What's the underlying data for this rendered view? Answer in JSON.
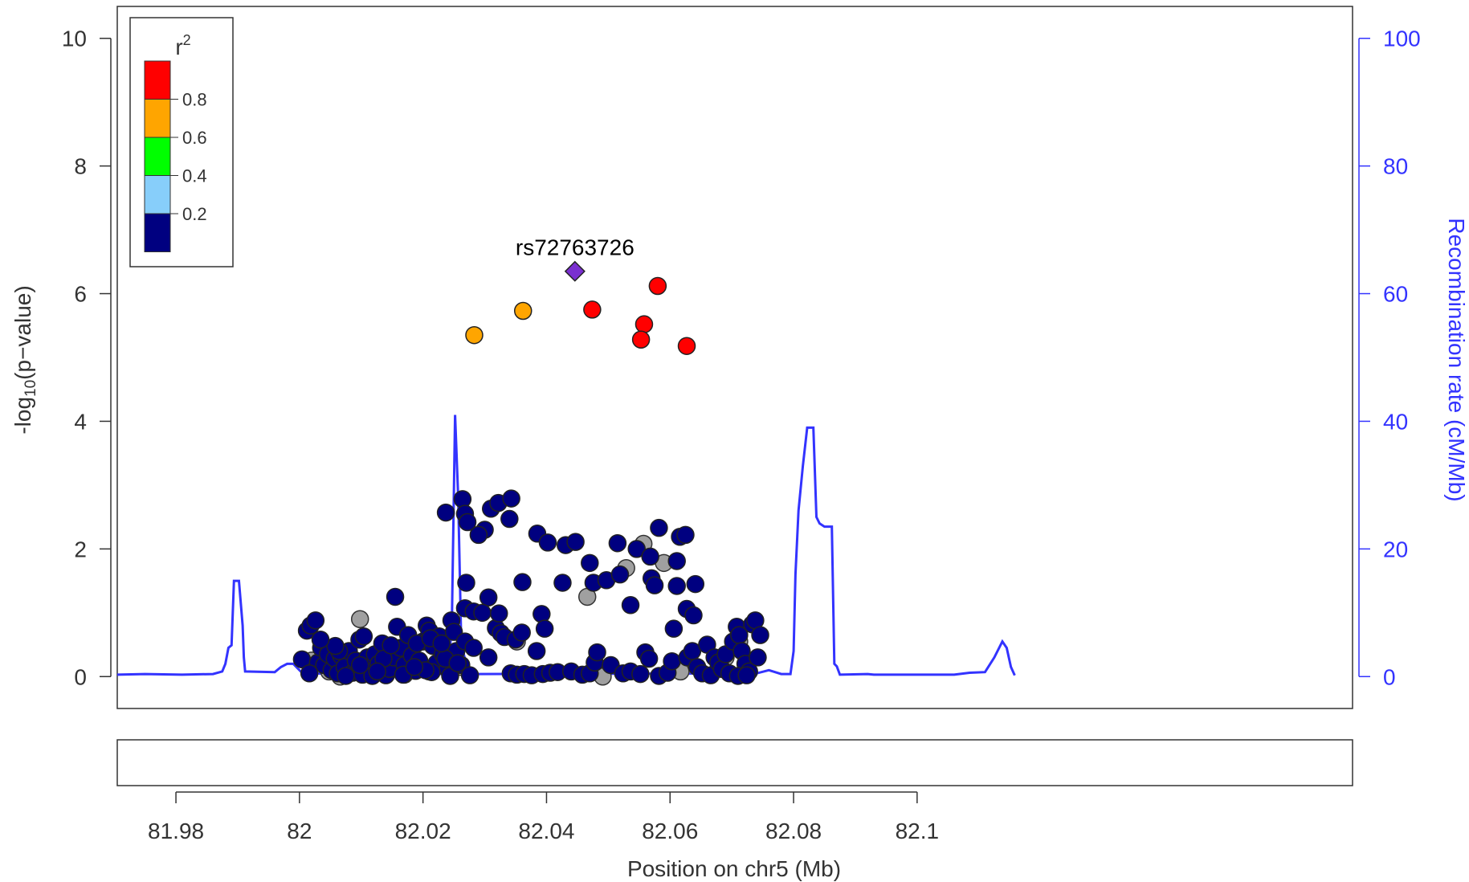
{
  "chart_data": {
    "type": "scatter",
    "xlabel": "Position on chr5 (Mb)",
    "ylabel_main": "-log",
    "ylabel_sub": "10",
    "ylabel_tail": "(p−value)",
    "y2label": "Recombination rate (cM/Mb)",
    "xlim": [
      81.9705,
      82.1705
    ],
    "ylim": [
      -0.5,
      10.5
    ],
    "y2lim": [
      -5,
      105
    ],
    "x_ticks": [
      {
        "v": 81.98,
        "label": "81.98"
      },
      {
        "v": 82.0,
        "label": "82"
      },
      {
        "v": 82.02,
        "label": "82.02"
      },
      {
        "v": 82.04,
        "label": "82.04"
      },
      {
        "v": 82.06,
        "label": "82.06"
      },
      {
        "v": 82.08,
        "label": "82.08"
      },
      {
        "v": 82.1,
        "label": "82.1"
      }
    ],
    "y_ticks": [
      {
        "v": 0,
        "label": "0"
      },
      {
        "v": 2,
        "label": "2"
      },
      {
        "v": 4,
        "label": "4"
      },
      {
        "v": 6,
        "label": "6"
      },
      {
        "v": 8,
        "label": "8"
      },
      {
        "v": 10,
        "label": "10"
      }
    ],
    "y2_ticks": [
      {
        "v": 0,
        "label": "0"
      },
      {
        "v": 20,
        "label": "20"
      },
      {
        "v": 40,
        "label": "40"
      },
      {
        "v": 60,
        "label": "60"
      },
      {
        "v": 80,
        "label": "80"
      },
      {
        "v": 100,
        "label": "100"
      }
    ],
    "legend": {
      "title": "r",
      "title_sup": "2",
      "placement": "top-left",
      "bins": [
        {
          "color": "#ff0000"
        },
        {
          "color": "#ffa500"
        },
        {
          "color": "#00ff00"
        },
        {
          "color": "#87cefa"
        },
        {
          "color": "#000080"
        }
      ],
      "labels": [
        "0.8",
        "0.6",
        "0.4",
        "0.2"
      ]
    },
    "lead_snp": {
      "name": "rs72763726",
      "x": 82.0446,
      "y": 6.35,
      "color": "#7a2fd0"
    },
    "colors": {
      "high": "#ff0000",
      "mid": "#ffa500",
      "low": "#000080",
      "na": "#a0a0a0",
      "recomb": "#3333ff",
      "axis2": "#3333ff",
      "axis": "#333333"
    },
    "highlight_points": [
      {
        "x": 82.0283,
        "y": 5.35,
        "r2": "mid"
      },
      {
        "x": 82.0362,
        "y": 5.73,
        "r2": "mid"
      },
      {
        "x": 82.0474,
        "y": 5.75,
        "r2": "high"
      },
      {
        "x": 82.058,
        "y": 6.12,
        "r2": "high"
      },
      {
        "x": 82.0558,
        "y": 5.52,
        "r2": "high"
      },
      {
        "x": 82.0553,
        "y": 5.28,
        "r2": "high"
      },
      {
        "x": 82.0627,
        "y": 5.18,
        "r2": "high"
      }
    ],
    "peak_points": [
      [
        82.0237,
        2.57
      ],
      [
        82.0264,
        2.78
      ],
      [
        82.0268,
        2.55
      ],
      [
        82.0272,
        2.42
      ],
      [
        82.031,
        2.63
      ],
      [
        82.0322,
        2.72
      ],
      [
        82.0343,
        2.79
      ],
      [
        82.034,
        2.47
      ],
      [
        82.03,
        2.3
      ],
      [
        82.029,
        2.22
      ],
      [
        82.0385,
        2.24
      ],
      [
        82.0402,
        2.1
      ],
      [
        82.0431,
        2.06
      ],
      [
        82.0447,
        2.11
      ],
      [
        82.047,
        1.78
      ],
      [
        82.0476,
        1.47
      ],
      [
        82.0497,
        1.51
      ],
      [
        82.0515,
        2.09
      ],
      [
        82.0519,
        1.6
      ],
      [
        82.0536,
        1.12
      ],
      [
        82.0546,
        2.0
      ],
      [
        82.057,
        1.54
      ],
      [
        82.0575,
        1.43
      ],
      [
        82.0568,
        1.88
      ],
      [
        82.0582,
        2.33
      ],
      [
        82.0616,
        2.19
      ],
      [
        82.0625,
        2.22
      ],
      [
        82.0611,
        1.42
      ],
      [
        82.0611,
        1.81
      ],
      [
        82.0641,
        1.45
      ],
      [
        82.027,
        1.47
      ],
      [
        82.0361,
        1.48
      ],
      [
        82.0426,
        1.47
      ],
      [
        82.0155,
        1.25
      ],
      [
        82.0306,
        1.24
      ],
      [
        82.0268,
        1.07
      ],
      [
        82.0282,
        1.02
      ],
      [
        82.0296,
        1.0
      ],
      [
        82.0323,
        0.99
      ],
      [
        82.0392,
        0.98
      ],
      [
        82.0397,
        0.75
      ],
      [
        82.0606,
        0.75
      ],
      [
        82.0627,
        1.06
      ],
      [
        82.0638,
        0.96
      ]
    ],
    "bulk_points": [
      [
        82.0004,
        0.27
      ],
      [
        82.0012,
        0.72
      ],
      [
        82.0018,
        0.8
      ],
      [
        82.0026,
        0.88
      ],
      [
        82.003,
        0.22
      ],
      [
        82.0035,
        0.45
      ],
      [
        82.004,
        0.18
      ],
      [
        82.0046,
        0.35
      ],
      [
        82.0052,
        0.1
      ],
      [
        82.0057,
        0.28
      ],
      [
        82.0062,
        0.05
      ],
      [
        82.0067,
        0.33
      ],
      [
        82.0073,
        0.15
      ],
      [
        82.008,
        0.4
      ],
      [
        82.0086,
        0.06
      ],
      [
        82.0091,
        0.25
      ],
      [
        82.0097,
        0.58
      ],
      [
        82.0104,
        0.63
      ],
      [
        82.011,
        0.3
      ],
      [
        82.0116,
        0.08
      ],
      [
        82.0122,
        0.35
      ],
      [
        82.0128,
        0.2
      ],
      [
        82.0134,
        0.52
      ],
      [
        82.014,
        0.02
      ],
      [
        82.0146,
        0.12
      ],
      [
        82.0152,
        0.3
      ],
      [
        82.0158,
        0.78
      ],
      [
        82.0164,
        0.45
      ],
      [
        82.017,
        0.18
      ],
      [
        82.0176,
        0.65
      ],
      [
        82.0182,
        0.33
      ],
      [
        82.0188,
        0.09
      ],
      [
        82.0194,
        0.25
      ],
      [
        82.02,
        0.55
      ],
      [
        82.0206,
        0.8
      ],
      [
        82.021,
        0.72
      ],
      [
        82.0216,
        0.48
      ],
      [
        82.0222,
        0.21
      ],
      [
        82.0226,
        0.63
      ],
      [
        82.0232,
        0.35
      ],
      [
        82.024,
        0.12
      ],
      [
        82.0246,
        0.88
      ],
      [
        82.025,
        0.7
      ],
      [
        82.0254,
        0.4
      ],
      [
        82.0262,
        0.18
      ],
      [
        82.0268,
        0.55
      ],
      [
        82.0276,
        0.02
      ],
      [
        82.0282,
        0.45
      ],
      [
        82.0306,
        0.3
      ],
      [
        82.0318,
        0.76
      ],
      [
        82.0326,
        0.68
      ],
      [
        82.0332,
        0.62
      ],
      [
        82.035,
        0.58
      ],
      [
        82.036,
        0.69
      ],
      [
        82.0342,
        0.05
      ],
      [
        82.0352,
        0.03
      ],
      [
        82.0364,
        0.04
      ],
      [
        82.0376,
        0.02
      ],
      [
        82.0384,
        0.4
      ],
      [
        82.0394,
        0.04
      ],
      [
        82.0406,
        0.06
      ],
      [
        82.0418,
        0.07
      ],
      [
        82.044,
        0.08
      ],
      [
        82.0458,
        0.03
      ],
      [
        82.047,
        0.05
      ],
      [
        82.0478,
        0.22
      ],
      [
        82.0482,
        0.38
      ],
      [
        82.0504,
        0.18
      ],
      [
        82.0524,
        0.05
      ],
      [
        82.0536,
        0.08
      ],
      [
        82.0552,
        0.04
      ],
      [
        82.056,
        0.38
      ],
      [
        82.0566,
        0.28
      ],
      [
        82.0582,
        0.01
      ],
      [
        82.0596,
        0.06
      ],
      [
        82.0603,
        0.24
      ],
      [
        82.0628,
        0.3
      ],
      [
        82.0636,
        0.4
      ],
      [
        82.0644,
        0.15
      ],
      [
        82.0652,
        0.05
      ],
      [
        82.066,
        0.5
      ],
      [
        82.0666,
        0.02
      ],
      [
        82.0672,
        0.3
      ],
      [
        82.0678,
        0.22
      ],
      [
        82.0684,
        0.12
      ],
      [
        82.069,
        0.35
      ],
      [
        82.0696,
        0.05
      ],
      [
        82.0702,
        0.55
      ],
      [
        82.0708,
        0.78
      ],
      [
        82.0712,
        0.65
      ],
      [
        82.0716,
        0.4
      ],
      [
        82.0722,
        0.2
      ],
      [
        82.0728,
        0.08
      ],
      [
        82.0733,
        0.82
      ],
      [
        82.0738,
        0.88
      ],
      [
        82.0742,
        0.3
      ],
      [
        82.0746,
        0.65
      ],
      [
        82.071,
        0.01
      ],
      [
        82.0724,
        0.02
      ],
      [
        82.0016,
        0.05
      ],
      [
        82.0064,
        0.4
      ],
      [
        82.0075,
        0.01
      ],
      [
        82.0102,
        0.03
      ],
      [
        82.0118,
        0.01
      ],
      [
        82.0136,
        0.28
      ],
      [
        82.0168,
        0.03
      ],
      [
        82.019,
        0.52
      ],
      [
        82.0214,
        0.07
      ],
      [
        82.0236,
        0.28
      ],
      [
        82.0244,
        0.01
      ],
      [
        82.0256,
        0.21
      ],
      [
        82.0212,
        0.6
      ],
      [
        82.023,
        0.52
      ],
      [
        82.0204,
        0.1
      ],
      [
        82.0186,
        0.15
      ],
      [
        82.0148,
        0.49
      ],
      [
        82.0126,
        0.08
      ],
      [
        82.0098,
        0.18
      ],
      [
        82.0058,
        0.48
      ],
      [
        82.0034,
        0.58
      ]
    ],
    "grey_points": [
      [
        82.0098,
        0.9
      ],
      [
        82.0048,
        0.08
      ],
      [
        82.0066,
        0.0
      ],
      [
        82.017,
        0.03
      ],
      [
        82.0262,
        0.15
      ],
      [
        82.0352,
        0.55
      ],
      [
        82.0466,
        1.25
      ],
      [
        82.0491,
        0.0
      ],
      [
        82.0529,
        1.7
      ],
      [
        82.0557,
        2.08
      ],
      [
        82.059,
        1.78
      ],
      [
        82.0617,
        0.08
      ],
      [
        82.0712,
        0.55
      ],
      [
        82.069,
        0.3
      ],
      [
        82.002,
        0.25
      ],
      [
        82.021,
        0.08
      ]
    ],
    "recomb_line": [
      [
        81.9705,
        0.3
      ],
      [
        81.975,
        0.4
      ],
      [
        81.981,
        0.3
      ],
      [
        81.986,
        0.4
      ],
      [
        81.9875,
        0.8
      ],
      [
        81.988,
        2.0
      ],
      [
        81.9885,
        4.5
      ],
      [
        81.989,
        4.9
      ],
      [
        81.9894,
        15.0
      ],
      [
        81.9902,
        15.0
      ],
      [
        81.9908,
        8.0
      ],
      [
        81.991,
        3.0
      ],
      [
        81.9912,
        0.8
      ],
      [
        81.996,
        0.7
      ],
      [
        81.997,
        1.5
      ],
      [
        81.998,
        2.0
      ],
      [
        81.999,
        2.0
      ],
      [
        82.0005,
        0.5
      ],
      [
        82.024,
        0.4
      ],
      [
        82.0242,
        1.0
      ],
      [
        82.0247,
        10.0
      ],
      [
        82.0252,
        41.0
      ],
      [
        82.0257,
        28.0
      ],
      [
        82.0262,
        5.0
      ],
      [
        82.027,
        2.0
      ],
      [
        82.0285,
        0.4
      ],
      [
        82.074,
        0.5
      ],
      [
        82.076,
        1.0
      ],
      [
        82.077,
        0.7
      ],
      [
        82.078,
        0.4
      ],
      [
        82.0795,
        0.4
      ],
      [
        82.08,
        4.0
      ],
      [
        82.0803,
        16.0
      ],
      [
        82.0808,
        26.0
      ],
      [
        82.0815,
        33.0
      ],
      [
        82.0822,
        39.0
      ],
      [
        82.0832,
        39.0
      ],
      [
        82.0837,
        25.0
      ],
      [
        82.0842,
        24.0
      ],
      [
        82.085,
        23.5
      ],
      [
        82.0862,
        23.5
      ],
      [
        82.0866,
        2.0
      ],
      [
        82.087,
        1.6
      ],
      [
        82.0875,
        0.3
      ],
      [
        82.092,
        0.4
      ],
      [
        82.093,
        0.3
      ],
      [
        82.099,
        0.3
      ],
      [
        82.103,
        0.3
      ],
      [
        82.106,
        0.3
      ],
      [
        82.1085,
        0.6
      ],
      [
        82.111,
        0.7
      ],
      [
        82.1125,
        3.0
      ],
      [
        82.1138,
        5.5
      ],
      [
        82.1145,
        4.5
      ],
      [
        82.1152,
        1.5
      ],
      [
        82.1158,
        0.2
      ]
    ]
  }
}
